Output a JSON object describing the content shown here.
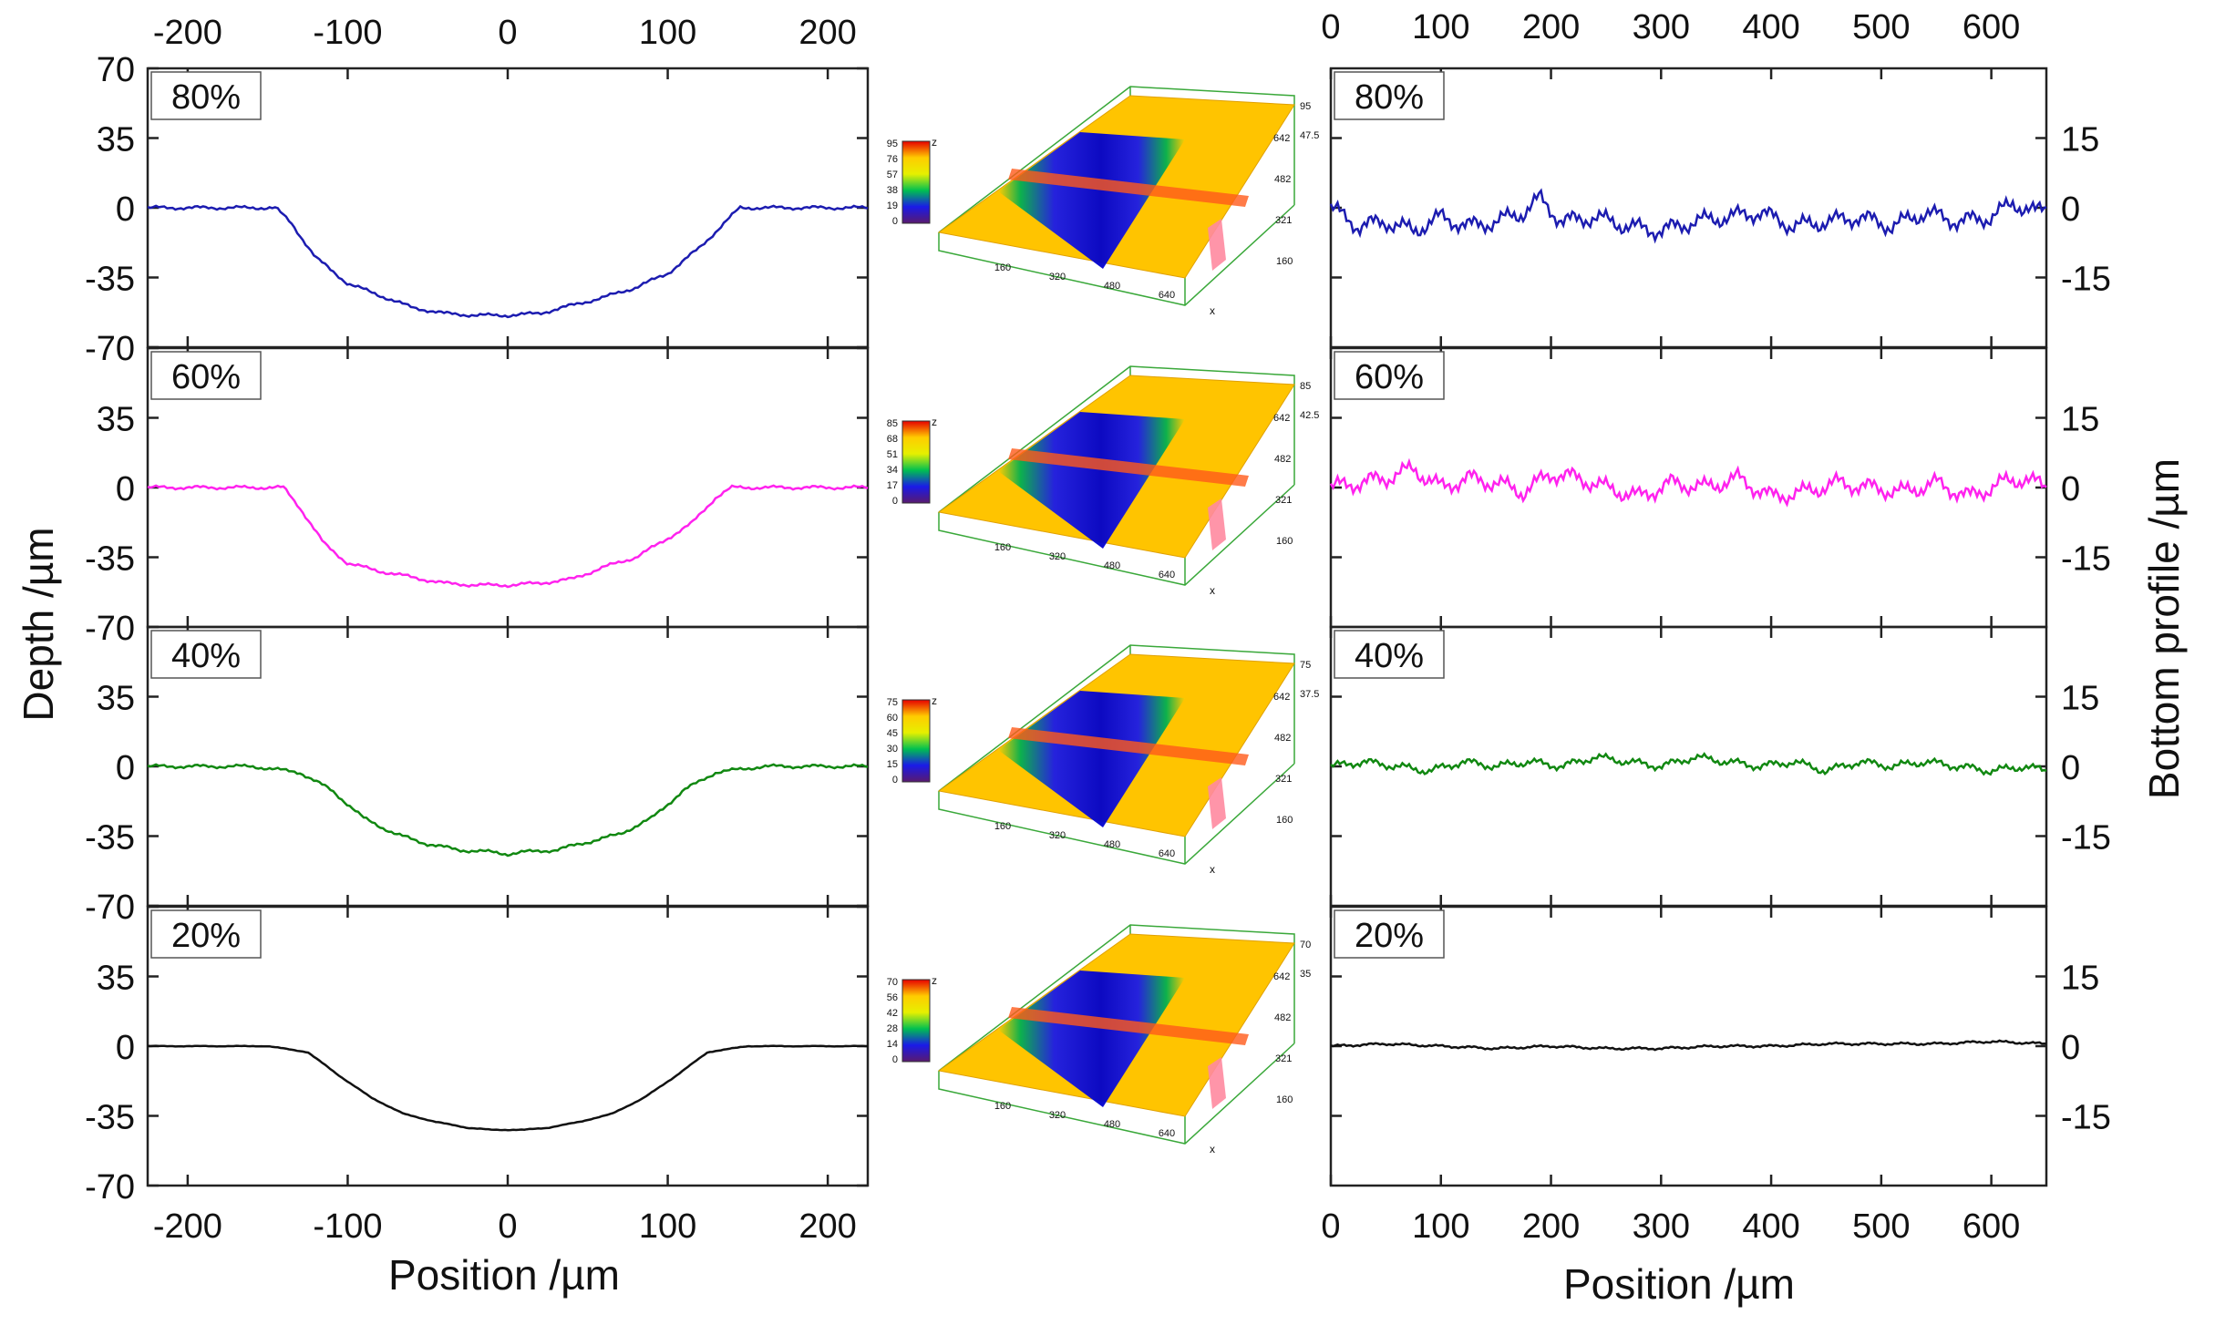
{
  "figure": {
    "left_ylabel": "Depth /µm",
    "right_ylabel": "Bottom profile /µm",
    "left_xlabel": "Position /µm",
    "right_xlabel": "Position /µm"
  },
  "chart_data": [
    {
      "id": "depth_profiles",
      "type": "line",
      "xlabel": "Position /µm",
      "ylabel": "Depth /µm",
      "xlim": [
        -225,
        225
      ],
      "ylim": [
        -70,
        70
      ],
      "x_ticks": [
        -200,
        -100,
        0,
        100,
        200
      ],
      "x_tick_labels": [
        "-200",
        "-100",
        "0",
        "100",
        "200"
      ],
      "y_ticks": [
        70,
        35,
        0,
        -35,
        -70
      ],
      "y_tick_labels": [
        "70",
        "35",
        "0",
        "-35",
        "-70"
      ],
      "panels": [
        {
          "label": "80%",
          "color": "#1c1cb0",
          "x": [
            -225,
            -145,
            -135,
            -120,
            -100,
            -80,
            -60,
            -40,
            -20,
            0,
            20,
            40,
            60,
            80,
            100,
            120,
            135,
            145,
            225
          ],
          "y": [
            0,
            0,
            -8,
            -25,
            -38,
            -44,
            -50,
            -53,
            -54,
            -54,
            -53,
            -49,
            -45,
            -40,
            -33,
            -20,
            -8,
            0,
            0
          ]
        },
        {
          "label": "60%",
          "color": "#ff22ee",
          "x": [
            -225,
            -140,
            -130,
            -115,
            -100,
            -80,
            -60,
            -40,
            -20,
            0,
            20,
            40,
            60,
            80,
            95,
            115,
            130,
            140,
            225
          ],
          "y": [
            0,
            0,
            -10,
            -28,
            -38,
            -42,
            -45,
            -48,
            -49,
            -49,
            -48,
            -46,
            -40,
            -35,
            -28,
            -18,
            -5,
            0,
            0
          ]
        },
        {
          "label": "40%",
          "color": "#118811",
          "x": [
            -225,
            -160,
            -130,
            -110,
            -90,
            -70,
            -50,
            -30,
            -10,
            0,
            10,
            30,
            50,
            70,
            90,
            110,
            130,
            160,
            225
          ],
          "y": [
            0,
            0,
            -3,
            -12,
            -26,
            -34,
            -39,
            -42,
            -43,
            -44,
            -43,
            -42,
            -38,
            -34,
            -26,
            -12,
            -3,
            0,
            0
          ]
        },
        {
          "label": "20%",
          "color": "#111111",
          "x": [
            -225,
            -150,
            -125,
            -105,
            -85,
            -65,
            -45,
            -25,
            -10,
            0,
            10,
            25,
            45,
            65,
            85,
            105,
            125,
            150,
            225
          ],
          "y": [
            0,
            0,
            -3,
            -15,
            -26,
            -34,
            -38,
            -41,
            -42,
            -42,
            -42,
            -41,
            -38,
            -34,
            -26,
            -15,
            -3,
            0,
            0
          ]
        }
      ]
    },
    {
      "id": "surface_maps",
      "type": "heatmap",
      "description_labels": {
        "x_axis_ticks": [
          "160",
          "320",
          "480",
          "640"
        ],
        "y_axis_ticks": [
          "160",
          "321",
          "482",
          "642"
        ],
        "x_letter": "x",
        "z_letter": "z"
      },
      "panels": [
        {
          "label": "80%",
          "z_scale": [
            "95",
            "76",
            "57",
            "38",
            "19",
            "0"
          ],
          "z_axis": [
            "95",
            "47.5"
          ]
        },
        {
          "label": "60%",
          "z_scale": [
            "85",
            "68",
            "51",
            "34",
            "17",
            "0"
          ],
          "z_axis": [
            "85",
            "42.5"
          ]
        },
        {
          "label": "40%",
          "z_scale": [
            "75",
            "60",
            "45",
            "30",
            "15",
            "0"
          ],
          "z_axis": [
            "75",
            "37.5"
          ]
        },
        {
          "label": "20%",
          "z_scale": [
            "70",
            "56",
            "42",
            "28",
            "14",
            "0"
          ],
          "z_axis": [
            "70",
            "35"
          ]
        }
      ],
      "colormap": [
        "#5a1a6e",
        "#1a1ae8",
        "#00c050",
        "#e6f000",
        "#ffcc00",
        "#ff6600",
        "#e60000"
      ]
    },
    {
      "id": "bottom_profiles",
      "type": "line",
      "xlabel": "Position /µm",
      "ylabel": "Bottom profile /µm",
      "xlim": [
        0,
        650
      ],
      "ylim": [
        -30,
        30
      ],
      "x_ticks": [
        0,
        100,
        200,
        300,
        400,
        500,
        600
      ],
      "x_tick_labels": [
        "0",
        "100",
        "200",
        "300",
        "400",
        "500",
        "600"
      ],
      "y_ticks": [
        15,
        0,
        -15
      ],
      "y_tick_labels": [
        "15",
        "0",
        "-15"
      ],
      "panels": [
        {
          "label": "80%",
          "color": "#1c1cb0",
          "x": [
            0,
            25,
            50,
            75,
            100,
            125,
            150,
            175,
            190,
            210,
            240,
            270,
            300,
            330,
            360,
            390,
            420,
            450,
            480,
            510,
            540,
            570,
            600,
            620,
            640,
            650
          ],
          "y": [
            0,
            -4,
            -3,
            -5,
            -2,
            -4,
            -3,
            -1,
            2,
            -3,
            -2,
            -4,
            -5,
            -3,
            -2,
            -1,
            -4,
            -3,
            -2,
            -4,
            -1,
            -3,
            -2,
            1,
            -1,
            0
          ]
        },
        {
          "label": "60%",
          "color": "#ff22ee",
          "x": [
            0,
            25,
            50,
            75,
            100,
            125,
            150,
            175,
            200,
            225,
            250,
            280,
            310,
            340,
            370,
            400,
            430,
            460,
            490,
            520,
            550,
            580,
            610,
            630,
            650
          ],
          "y": [
            0,
            1,
            2,
            4,
            0,
            2,
            1,
            -1,
            3,
            2,
            0,
            -2,
            1,
            0,
            2,
            -2,
            -1,
            1,
            0,
            -1,
            1,
            -2,
            1,
            2,
            0
          ]
        },
        {
          "label": "40%",
          "color": "#118811",
          "x": [
            0,
            30,
            60,
            90,
            120,
            150,
            180,
            210,
            240,
            270,
            300,
            330,
            360,
            390,
            420,
            450,
            480,
            510,
            540,
            570,
            600,
            630,
            650
          ],
          "y": [
            0,
            1,
            0,
            -1,
            1,
            0,
            1,
            0,
            2,
            1,
            0,
            2,
            1,
            0,
            1,
            -1,
            1,
            0,
            1,
            0,
            -1,
            0,
            -1
          ]
        },
        {
          "label": "20%",
          "color": "#111111",
          "x": [
            0,
            50,
            100,
            150,
            200,
            250,
            300,
            350,
            400,
            450,
            500,
            550,
            600,
            650
          ],
          "y": [
            0,
            0.5,
            0,
            -0.5,
            0,
            -0.5,
            -0.5,
            0,
            0,
            0.5,
            0.5,
            0.5,
            1,
            0.5
          ]
        }
      ]
    }
  ]
}
